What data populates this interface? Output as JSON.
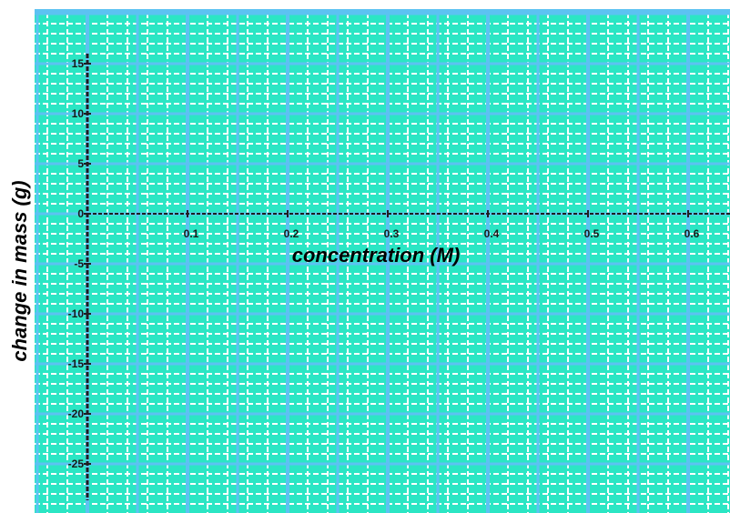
{
  "chart_data": {
    "type": "line",
    "title": "",
    "xlabel": "concentration (M)",
    "ylabel": "change in mass (g)",
    "xlim": [
      0,
      0.6
    ],
    "ylim": [
      -30,
      15
    ],
    "x_ticks": [
      "0.1",
      "0.2",
      "0.3",
      "0.4",
      "0.5",
      "0.6"
    ],
    "y_ticks": [
      "15",
      "10",
      "5",
      "0",
      "-5",
      "-10",
      "-15",
      "-20",
      "-25"
    ],
    "series": [],
    "grid": true,
    "grid_colors": {
      "background": "#2be6c4",
      "major": "#5cc2f2",
      "minor": "#ffffff",
      "axis": "#1f1f1f"
    }
  }
}
